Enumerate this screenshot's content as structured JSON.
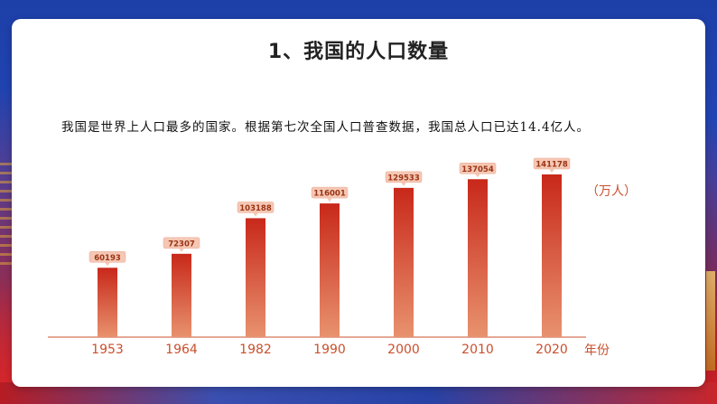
{
  "slide": {
    "title": "1、我国的人口数量",
    "description": "我国是世界上人口最多的国家。根据第七次全国人口普查数据，我国总人口已达14.4亿人。"
  },
  "colors": {
    "bar_top": "#c8281a",
    "bar_bottom": "#e8926e",
    "label_bg": "#f5c7b4",
    "label_text": "#9a3414",
    "axis_text": "#c8502e",
    "axis_line": "#c8502e"
  },
  "chart_data": {
    "type": "bar",
    "categories": [
      "1953",
      "1964",
      "1982",
      "1990",
      "2000",
      "2010",
      "2020"
    ],
    "values": [
      60193,
      72307,
      103188,
      116001,
      129533,
      137054,
      141178
    ],
    "title": "",
    "ylabel": "（万人）",
    "xlabel": "年份",
    "ylim": [
      0,
      141178
    ],
    "grid": false,
    "data_labels": true
  }
}
